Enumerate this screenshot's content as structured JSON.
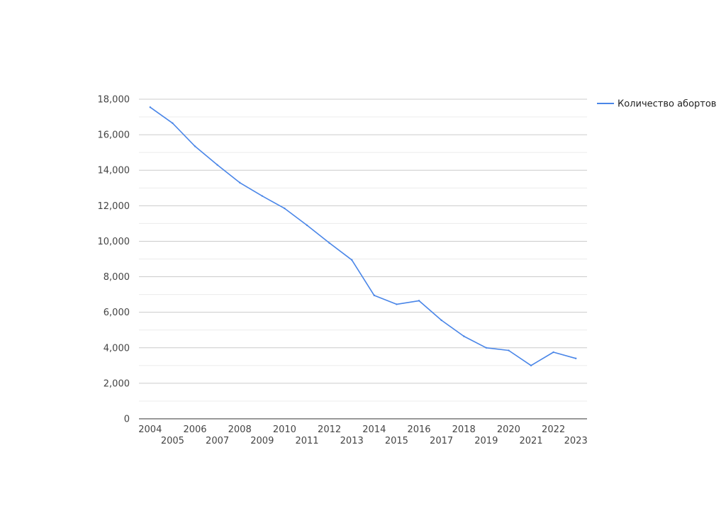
{
  "chart_data": {
    "type": "line",
    "x": [
      2004,
      2005,
      2006,
      2007,
      2008,
      2009,
      2010,
      2011,
      2012,
      2013,
      2014,
      2015,
      2016,
      2017,
      2018,
      2019,
      2020,
      2021,
      2022,
      2023
    ],
    "series": [
      {
        "name": "Количество абортов",
        "color": "#4a86e8",
        "values": [
          17550,
          16650,
          15350,
          14300,
          13300,
          12550,
          11850,
          10900,
          9900,
          8950,
          6950,
          6450,
          6650,
          5550,
          4650,
          4000,
          3850,
          3000,
          3750,
          3400
        ]
      }
    ],
    "ylim": [
      0,
      18000
    ],
    "y_ticks": [
      "0",
      "2,000",
      "4,000",
      "6,000",
      "8,000",
      "10,000",
      "12,000",
      "14,000",
      "16,000",
      "18,000"
    ],
    "x_ticks": [
      "2004",
      "2005",
      "2006",
      "2007",
      "2008",
      "2009",
      "2010",
      "2011",
      "2012",
      "2013",
      "2014",
      "2015",
      "2016",
      "2017",
      "2018",
      "2019",
      "2020",
      "2021",
      "2022",
      "2023"
    ],
    "grid": true,
    "legend_position": "right",
    "title": "",
    "xlabel": "",
    "ylabel": ""
  }
}
